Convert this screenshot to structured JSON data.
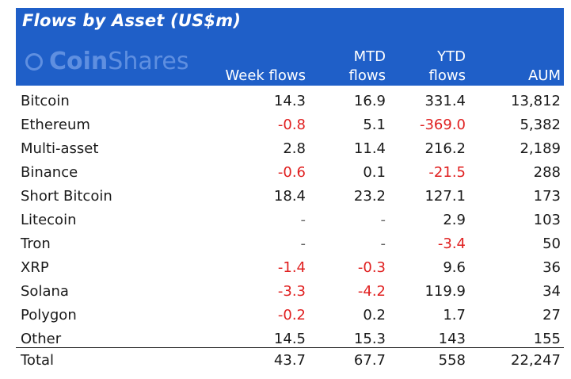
{
  "chart_data": {
    "type": "table",
    "title": "Flows by Asset (US$m)",
    "brand": "CoinShares",
    "brand_prefix": "Coin",
    "brand_suffix": "Shares",
    "columns": {
      "week_flows": "Week flows",
      "mtd_line1": "MTD",
      "mtd_line2": "flows",
      "ytd_line1": "YTD",
      "ytd_line2": "flows",
      "aum": "AUM"
    },
    "rows": [
      {
        "asset": "Bitcoin",
        "week": "14.3",
        "mtd": "16.9",
        "ytd": "331.4",
        "aum": "13,812"
      },
      {
        "asset": "Ethereum",
        "week": "-0.8",
        "mtd": "5.1",
        "ytd": "-369.0",
        "aum": "5,382"
      },
      {
        "asset": "Multi-asset",
        "week": "2.8",
        "mtd": "11.4",
        "ytd": "216.2",
        "aum": "2,189"
      },
      {
        "asset": "Binance",
        "week": "-0.6",
        "mtd": "0.1",
        "ytd": "-21.5",
        "aum": "288"
      },
      {
        "asset": "Short Bitcoin",
        "week": "18.4",
        "mtd": "23.2",
        "ytd": "127.1",
        "aum": "173"
      },
      {
        "asset": "Litecoin",
        "week": "-",
        "mtd": "-",
        "ytd": "2.9",
        "aum": "103"
      },
      {
        "asset": "Tron",
        "week": "-",
        "mtd": "-",
        "ytd": "-3.4",
        "aum": "50"
      },
      {
        "asset": "XRP",
        "week": "-1.4",
        "mtd": "-0.3",
        "ytd": "9.6",
        "aum": "36"
      },
      {
        "asset": "Solana",
        "week": "-3.3",
        "mtd": "-4.2",
        "ytd": "119.9",
        "aum": "34"
      },
      {
        "asset": "Polygon",
        "week": "-0.2",
        "mtd": "0.2",
        "ytd": "1.7",
        "aum": "27"
      },
      {
        "asset": "Other",
        "week": "14.5",
        "mtd": "15.3",
        "ytd": "143",
        "aum": "155"
      }
    ],
    "total": {
      "asset": "Total",
      "week": "43.7",
      "mtd": "67.7",
      "ytd": "558",
      "aum": "22,247"
    }
  },
  "colors": {
    "header_bg": "#1f5fc8",
    "negative": "#e02020",
    "text": "#1a1a1a"
  }
}
